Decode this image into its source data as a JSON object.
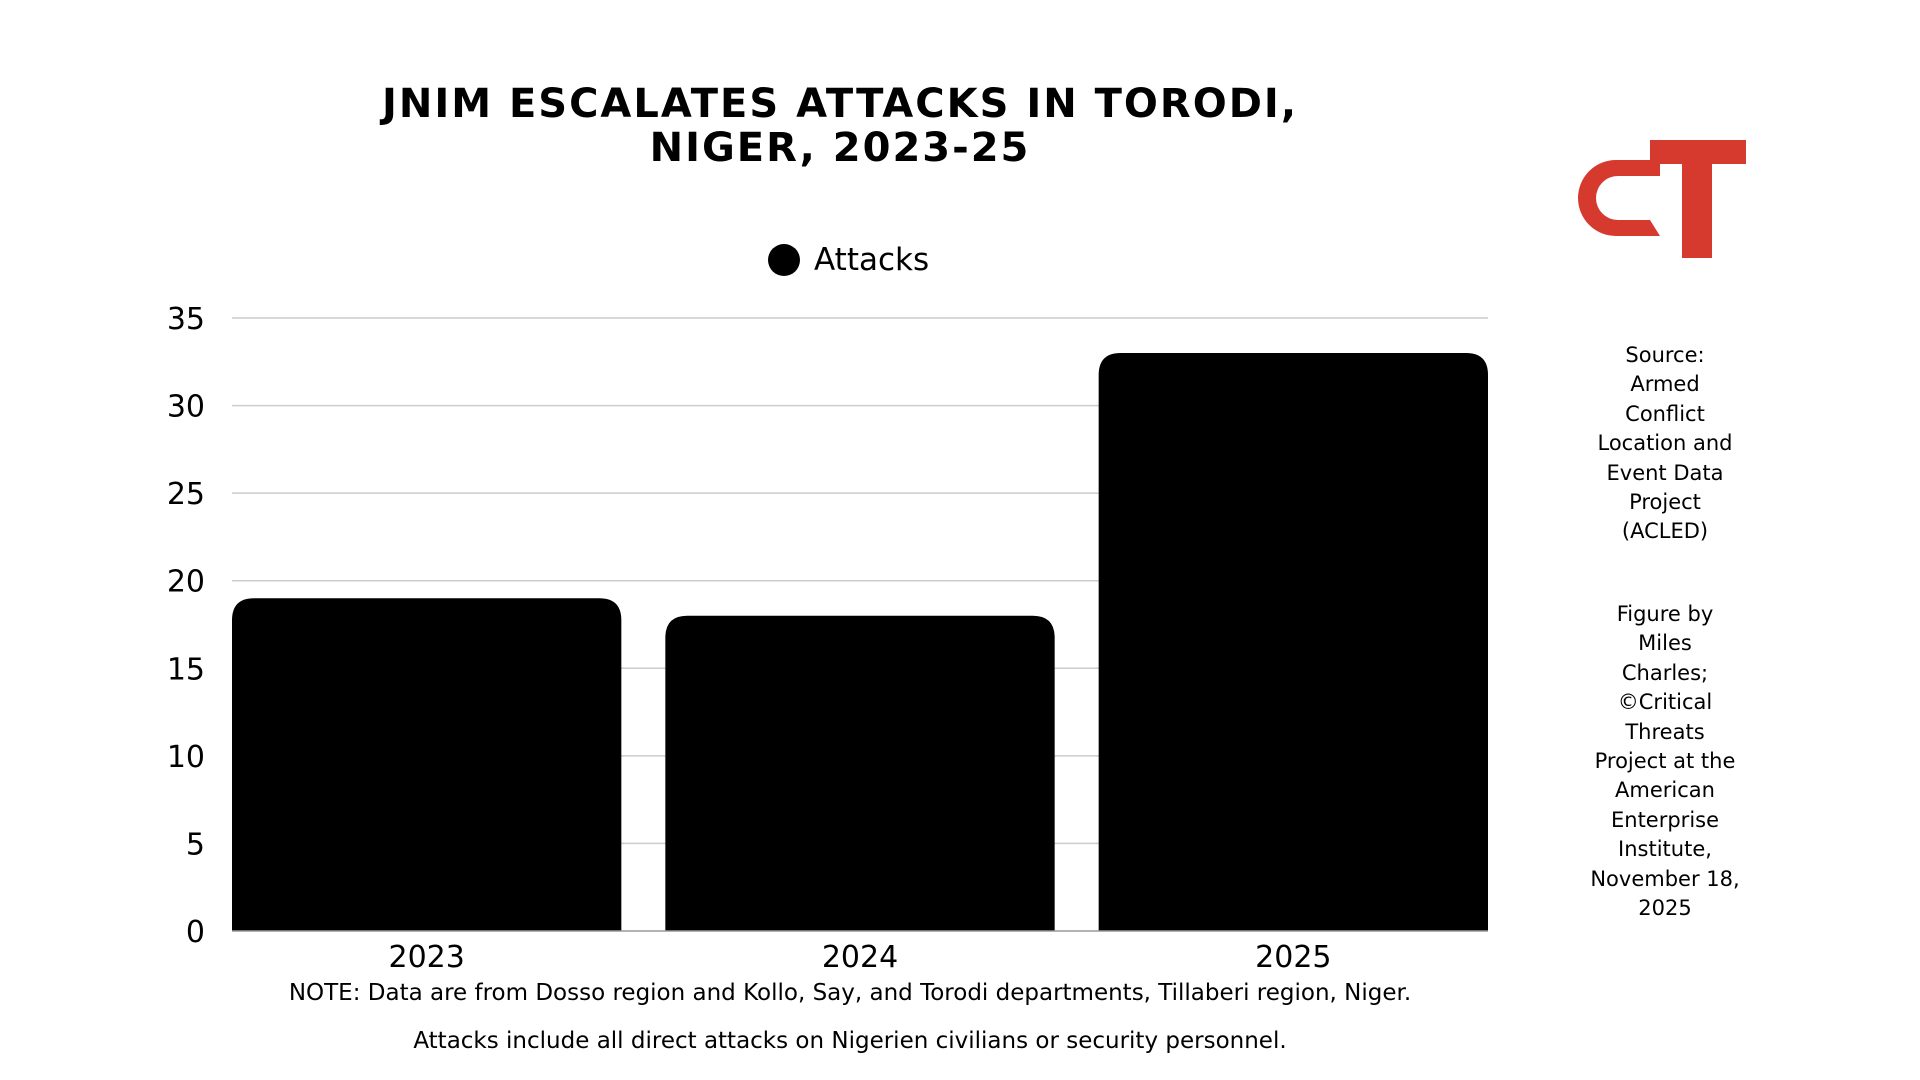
{
  "title_lines": [
    "JNIM ESCALATES ATTACKS IN TORODI,",
    "NIGER, 2023-25"
  ],
  "legend": {
    "label": "Attacks",
    "color": "#000000"
  },
  "chart_data": {
    "type": "bar",
    "title": "JNIM ESCALATES ATTACKS IN TORODI, NIGER, 2023-25",
    "categories": [
      "2023",
      "2024",
      "2025"
    ],
    "series": [
      {
        "name": "Attacks",
        "values": [
          19,
          18,
          33
        ],
        "color": "#000000"
      }
    ],
    "ylim": [
      0,
      35
    ],
    "yticks": [
      0,
      5,
      10,
      15,
      20,
      25,
      30,
      35
    ],
    "grid": true,
    "legend_position": "top-center"
  },
  "logo": {
    "text": "CT",
    "color": "#d63a2f"
  },
  "source_lines": [
    "Source:",
    "Armed",
    "Conflict",
    "Location and",
    "Event Data",
    "Project",
    "(ACLED)"
  ],
  "credit_lines": [
    "Figure by",
    "Miles",
    "Charles;",
    "©Critical",
    "Threats",
    "Project at the",
    "American",
    "Enterprise",
    "Institute,",
    "November 18,",
    "2025"
  ],
  "notes": [
    "NOTE: Data are from Dosso region and Kollo, Say, and Torodi departments, Tillaberi region, Niger.",
    "Attacks include all direct attacks on Nigerien civilians or security personnel."
  ]
}
